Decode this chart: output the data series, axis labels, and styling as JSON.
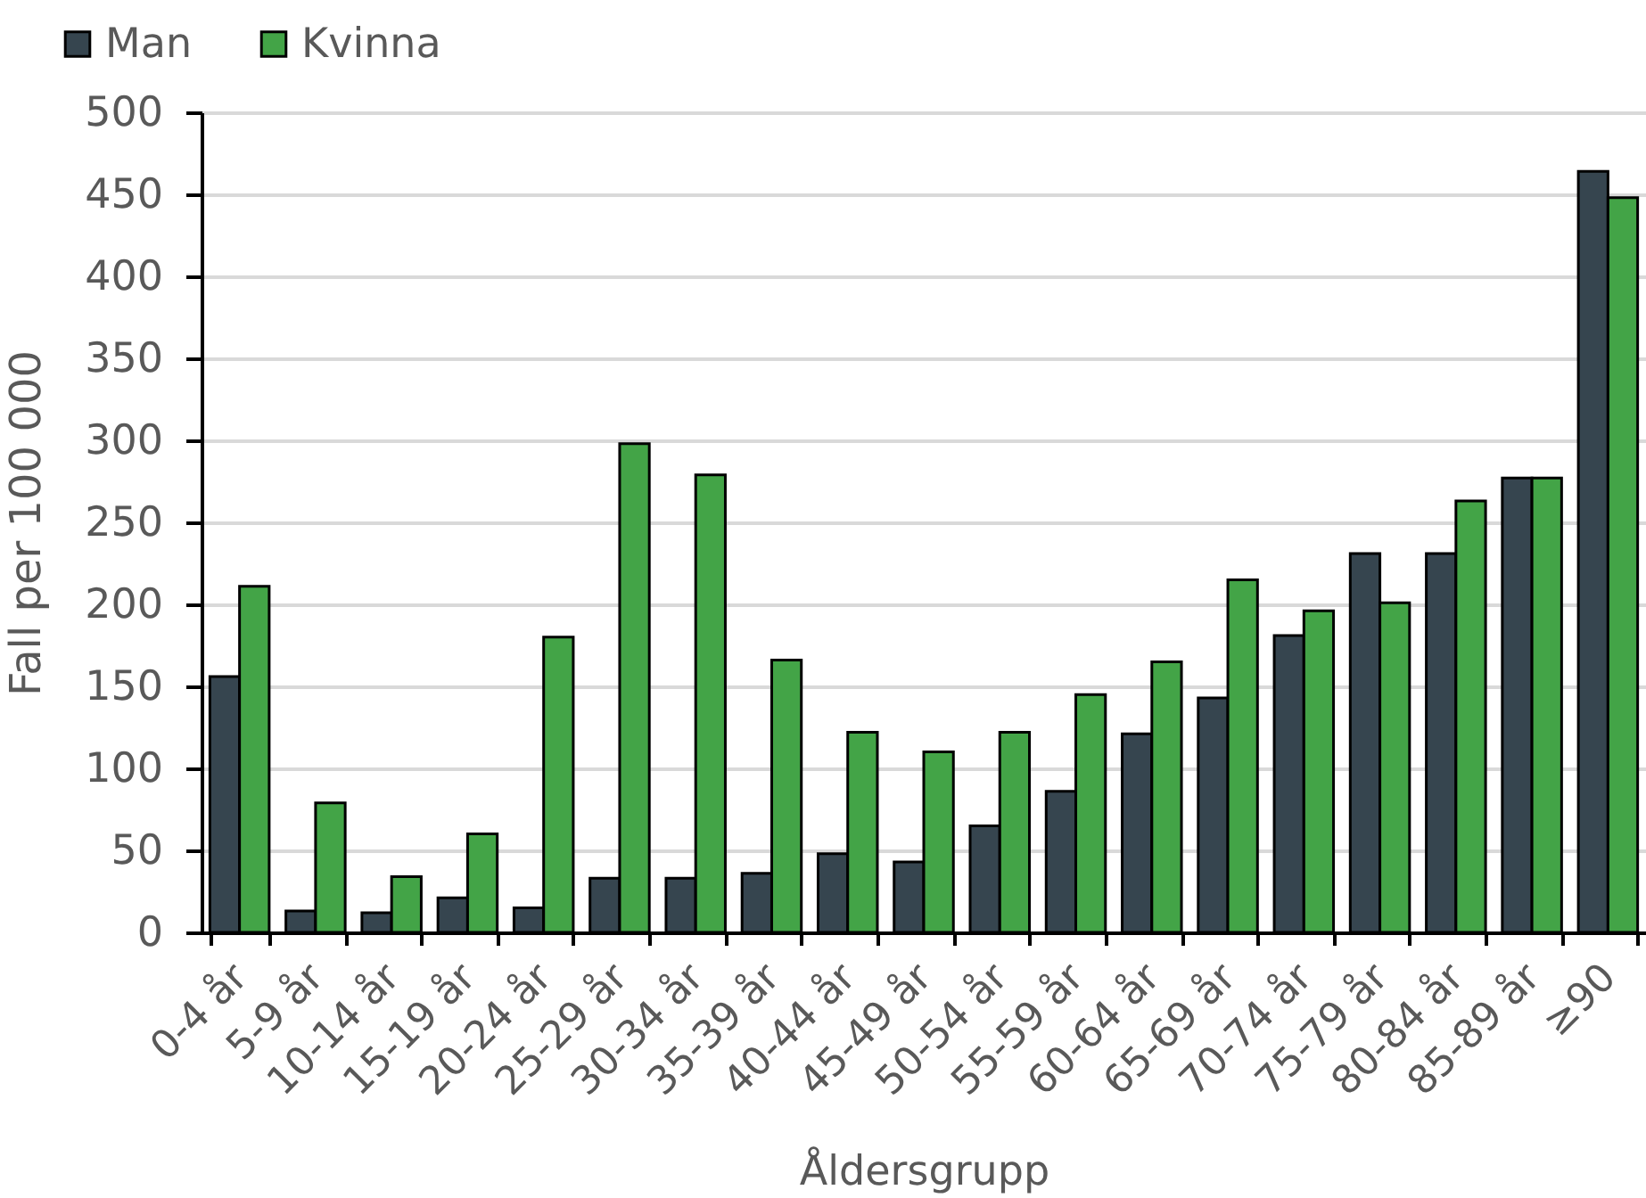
{
  "chart_data": {
    "type": "bar",
    "xlabel": "Åldersgrupp",
    "ylabel": "Fall per 100 000",
    "categories": [
      "0-4 år",
      "5-9 år",
      "10-14 år",
      "15-19 år",
      "20-24 år",
      "25-29 år",
      "30-34 år",
      "35-39 år",
      "40-44 år",
      "45-49 år",
      "50-54 år",
      "55-59 år",
      "60-64 år",
      "65-69 år",
      "70-74 år",
      "75-79 år",
      "80-84 år",
      "85-89 år",
      "≥90"
    ],
    "series": [
      {
        "name": "Man",
        "color": "#36454f",
        "values": [
          156,
          13,
          12,
          21,
          15,
          33,
          33,
          36,
          48,
          43,
          65,
          86,
          121,
          143,
          181,
          231,
          231,
          277,
          464
        ]
      },
      {
        "name": "Kvinna",
        "color": "#43a447",
        "values": [
          211,
          79,
          34,
          60,
          180,
          298,
          279,
          166,
          122,
          110,
          122,
          145,
          165,
          215,
          196,
          201,
          263,
          277,
          448
        ]
      }
    ],
    "ylim": [
      0,
      500
    ],
    "yticks": [
      0,
      50,
      100,
      150,
      200,
      250,
      300,
      350,
      400,
      450,
      500
    ],
    "grid": "y",
    "legend": "top left"
  }
}
